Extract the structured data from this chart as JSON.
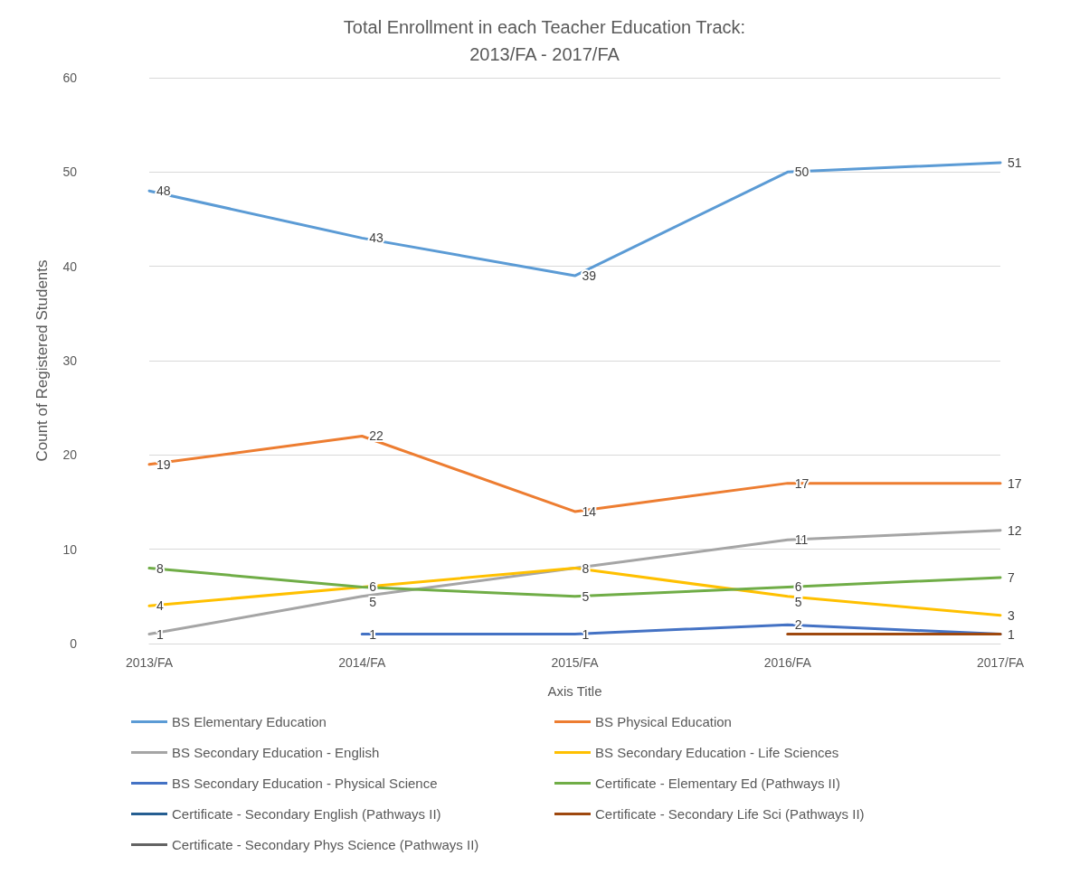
{
  "chart_data": {
    "type": "line",
    "title": "Total Enrollment in each Teacher Education Track:\n2013/FA - 2017/FA",
    "xlabel": "Axis Title",
    "ylabel": "Count of Registered Students",
    "categories": [
      "2013/FA",
      "2014/FA",
      "2015/FA",
      "2016/FA",
      "2017/FA"
    ],
    "ylim": [
      0,
      60
    ],
    "yticks": [
      0,
      10,
      20,
      30,
      40,
      50,
      60
    ],
    "grid": "y",
    "legend": "bottom",
    "marker": "none",
    "line_style": "solid",
    "series": [
      {
        "name": "BS Elementary Education",
        "color": "#5b9bd5",
        "values": [
          48,
          43,
          39,
          50,
          51
        ],
        "value_labels": [
          "48",
          "43",
          "39",
          "50",
          "51"
        ]
      },
      {
        "name": "BS Physical Education",
        "color": "#ed7d31",
        "values": [
          19,
          22,
          14,
          17,
          17
        ],
        "value_labels": [
          "19",
          "22",
          "14",
          "17",
          "17"
        ]
      },
      {
        "name": "BS Secondary Education - English",
        "color": "#a5a5a5",
        "values": [
          1,
          5,
          8,
          11,
          12
        ],
        "value_labels": [
          "1",
          "5",
          "8",
          "11",
          "12"
        ]
      },
      {
        "name": "BS Secondary Education - Life Sciences",
        "color": "#ffc000",
        "values": [
          4,
          6,
          8,
          5,
          3
        ],
        "value_labels": [
          "4",
          "6",
          null,
          "5",
          "3"
        ]
      },
      {
        "name": "BS Secondary Education - Physical Science",
        "color": "#4472c4",
        "values": [
          null,
          1,
          1,
          2,
          1
        ],
        "value_labels": [
          null,
          "1",
          "1",
          "2",
          "1"
        ]
      },
      {
        "name": "Certificate - Elementary Ed (Pathways II)",
        "color": "#70ad47",
        "values": [
          8,
          6,
          5,
          6,
          7
        ],
        "value_labels": [
          "8",
          null,
          "5",
          "6",
          "7"
        ]
      },
      {
        "name": "Certificate - Secondary English (Pathways II)",
        "color": "#255e91",
        "values": [
          null,
          null,
          null,
          null,
          null
        ]
      },
      {
        "name": "Certificate - Secondary Life Sci (Pathways II)",
        "color": "#9e480e",
        "values": [
          null,
          null,
          null,
          1,
          1
        ],
        "value_labels": [
          null,
          null,
          null,
          null,
          null
        ]
      },
      {
        "name": "Certificate - Secondary Phys Science (Pathways II)",
        "color": "#636363",
        "values": [
          null,
          null,
          null,
          null,
          null
        ]
      }
    ]
  }
}
